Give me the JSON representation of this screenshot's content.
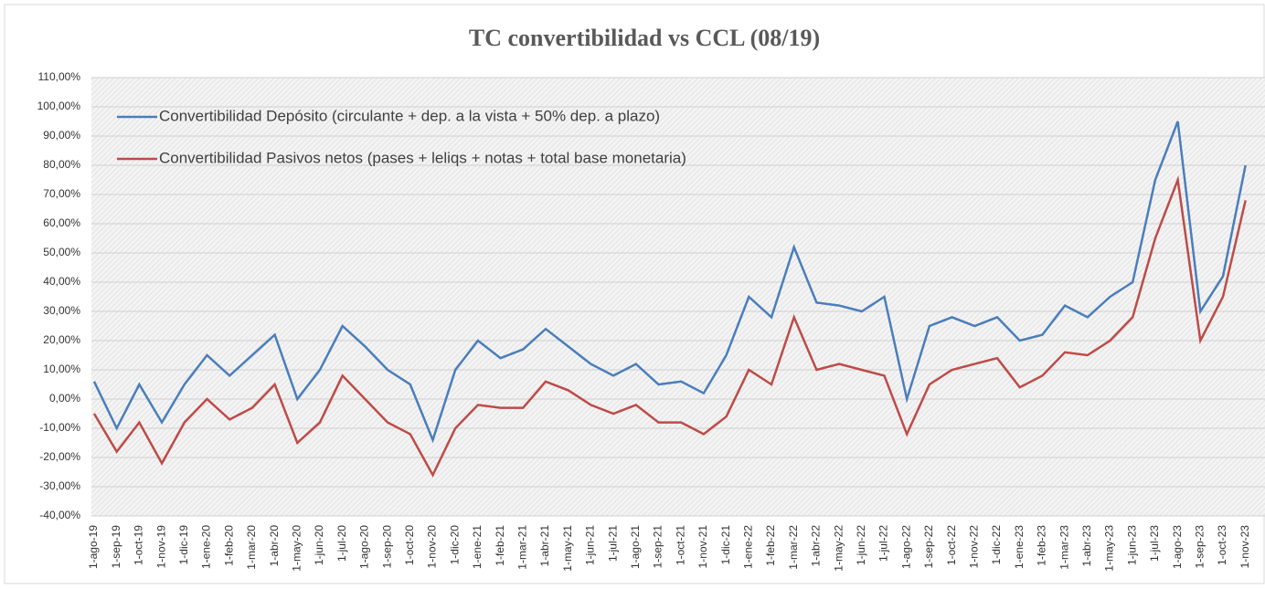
{
  "chart_data": {
    "type": "line",
    "title": "TC convertibilidad vs CCL (08/19)",
    "categories": [
      "1-ago-19",
      "1-sep-19",
      "1-oct-19",
      "1-nov-19",
      "1-dic-19",
      "1-ene-20",
      "1-feb-20",
      "1-mar-20",
      "1-abr-20",
      "1-may-20",
      "1-jun-20",
      "1-jul-20",
      "1-ago-20",
      "1-sep-20",
      "1-oct-20",
      "1-nov-20",
      "1-dic-20",
      "1-ene-21",
      "1-feb-21",
      "1-mar-21",
      "1-abr-21",
      "1-may-21",
      "1-jun-21",
      "1-jul-21",
      "1-ago-21",
      "1-sep-21",
      "1-oct-21",
      "1-nov-21",
      "1-dic-21",
      "1-ene-22",
      "1-feb-22",
      "1-mar-22",
      "1-abr-22",
      "1-may-22",
      "1-jun-22",
      "1-jul-22",
      "1-ago-22",
      "1-sep-22",
      "1-oct-22",
      "1-nov-22",
      "1-dic-22",
      "1-ene-23",
      "1-feb-23",
      "1-mar-23",
      "1-abr-23",
      "1-may-23",
      "1-jun-23",
      "1-jul-23",
      "1-ago-23",
      "1-sep-23",
      "1-oct-23",
      "1-nov-23"
    ],
    "series": [
      {
        "name": "Convertibilidad Depósito (circulante + dep. a la vista + 50% dep. a plazo)",
        "color": "#4a7ebb",
        "values": [
          6,
          -10,
          5,
          -8,
          5,
          15,
          8,
          15,
          22,
          0,
          10,
          25,
          18,
          10,
          5,
          -14,
          10,
          20,
          14,
          17,
          24,
          18,
          12,
          8,
          12,
          5,
          6,
          2,
          15,
          35,
          28,
          52,
          33,
          32,
          30,
          35,
          0,
          25,
          28,
          25,
          28,
          20,
          22,
          32,
          28,
          35,
          40,
          75,
          95,
          30,
          42,
          80
        ]
      },
      {
        "name": "Convertibilidad Pasivos netos (pases + leliqs + notas + total base monetaria)",
        "color": "#be4b48",
        "values": [
          -5,
          -18,
          -8,
          -22,
          -8,
          0,
          -7,
          -3,
          5,
          -15,
          -8,
          8,
          0,
          -8,
          -12,
          -26,
          -10,
          -2,
          -3,
          -3,
          6,
          3,
          -2,
          -5,
          -2,
          -8,
          -8,
          -12,
          -6,
          10,
          5,
          28,
          10,
          12,
          10,
          8,
          -12,
          5,
          10,
          12,
          14,
          4,
          8,
          16,
          15,
          20,
          28,
          55,
          75,
          20,
          35,
          68
        ]
      }
    ],
    "ylim": [
      -40,
      110
    ],
    "yticks": [
      {
        "value": -40,
        "label": "-40,00%"
      },
      {
        "value": -30,
        "label": "-30,00%"
      },
      {
        "value": -20,
        "label": "-20,00%"
      },
      {
        "value": -10,
        "label": "-10,00%"
      },
      {
        "value": 0,
        "label": "0,00%"
      },
      {
        "value": 10,
        "label": "10,00%"
      },
      {
        "value": 20,
        "label": "20,00%"
      },
      {
        "value": 30,
        "label": "30,00%"
      },
      {
        "value": 40,
        "label": "40,00%"
      },
      {
        "value": 50,
        "label": "50,00%"
      },
      {
        "value": 60,
        "label": "60,00%"
      },
      {
        "value": 70,
        "label": "70,00%"
      },
      {
        "value": 80,
        "label": "80,00%"
      },
      {
        "value": 90,
        "label": "90,00%"
      },
      {
        "value": 100,
        "label": "100,00%"
      },
      {
        "value": 110,
        "label": "110,00%"
      }
    ],
    "grid": true,
    "legend": "top-left"
  }
}
